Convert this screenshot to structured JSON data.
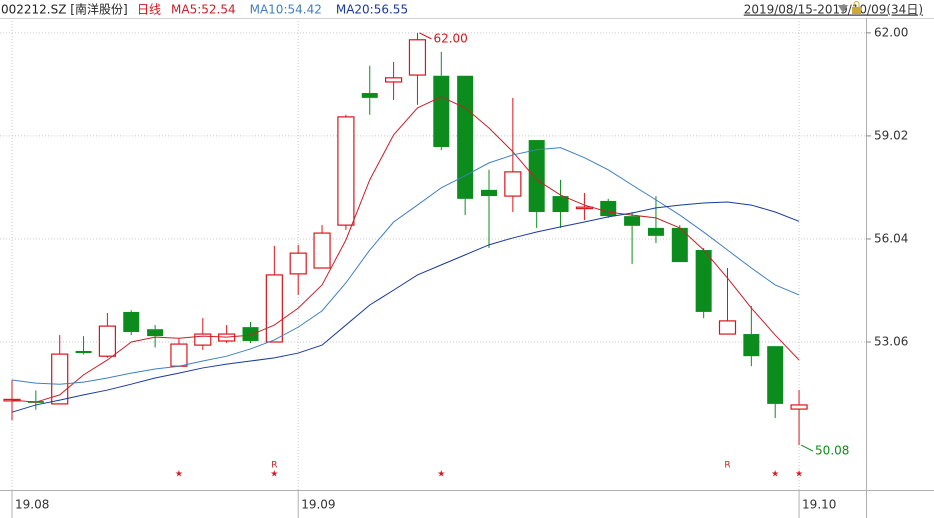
{
  "chart_data": {
    "type": "candlestick",
    "title": "002212.SZ [南洋股份]",
    "period": "日线",
    "date_range": "2019/08/15-2019/10/09(34日)",
    "categories": [
      "19.08",
      null,
      null,
      null,
      null,
      null,
      null,
      null,
      null,
      null,
      null,
      null,
      "19.09",
      null,
      null,
      null,
      null,
      null,
      null,
      null,
      null,
      null,
      null,
      null,
      null,
      null,
      null,
      null,
      null,
      null,
      null,
      null,
      null,
      "19.10"
    ],
    "open": [
      51.36,
      51.35,
      51.27,
      52.8,
      52.65,
      53.93,
      53.43,
      52.36,
      52.97,
      53.09,
      53.49,
      53.06,
      55.03,
      55.2,
      56.44,
      60.26,
      60.58,
      60.78,
      60.76,
      60.76,
      57.46,
      57.28,
      58.9,
      57.28,
      56.92,
      57.14,
      56.7,
      56.36,
      56.36,
      55.72,
      53.29,
      53.29,
      52.94,
      51.12
    ],
    "high": [
      51.96,
      51.66,
      53.26,
      53.23,
      53.9,
      53.98,
      53.55,
      53.17,
      53.75,
      53.55,
      53.64,
      55.84,
      55.87,
      56.44,
      59.63,
      61.05,
      61.16,
      62.0,
      61.45,
      60.76,
      58.04,
      60.12,
      58.9,
      57.75,
      57.37,
      57.2,
      56.82,
      57.28,
      56.44,
      55.78,
      55.2,
      54.1,
      52.94,
      51.67
    ],
    "low": [
      50.8,
      51.1,
      51.27,
      52.7,
      52.6,
      53.26,
      52.9,
      52.36,
      52.83,
      53.03,
      53.03,
      53.06,
      54.42,
      55.2,
      56.3,
      59.63,
      60.06,
      59.92,
      58.61,
      56.73,
      55.78,
      56.82,
      56.36,
      56.36,
      56.59,
      56.65,
      55.32,
      55.92,
      55.37,
      53.75,
      53.29,
      52.36,
      50.86,
      50.08
    ],
    "close": [
      51.4,
      51.3,
      52.71,
      52.74,
      53.52,
      53.35,
      53.23,
      53.0,
      53.29,
      53.29,
      53.09,
      55.0,
      55.63,
      56.21,
      59.57,
      60.12,
      60.7,
      61.8,
      58.7,
      57.2,
      57.28,
      57.98,
      56.82,
      56.82,
      56.96,
      56.7,
      56.42,
      56.13,
      55.37,
      53.93,
      53.67,
      52.65,
      51.27,
      51.24
    ],
    "up_color": "#d9141c",
    "down_color": "#0c8c1c",
    "series": [
      {
        "name": "MA5:52.54",
        "color": "#c8202a",
        "values": [
          51.38,
          51.32,
          51.53,
          52.11,
          52.54,
          53.06,
          53.2,
          53.17,
          53.23,
          53.2,
          53.26,
          53.55,
          54.04,
          54.71,
          56.01,
          57.75,
          59.05,
          59.83,
          60.15,
          59.83,
          59.25,
          58.56,
          57.75,
          57.31,
          57.02,
          56.82,
          56.73,
          56.65,
          56.36,
          55.72,
          54.91,
          54.04,
          53.26,
          52.54
        ]
      },
      {
        "name": "MA10:54.42",
        "color": "#3f7fc0",
        "values": [
          51.96,
          51.87,
          51.84,
          51.9,
          52.02,
          52.16,
          52.28,
          52.36,
          52.51,
          52.65,
          52.86,
          53.12,
          53.49,
          53.96,
          54.77,
          55.72,
          56.53,
          57.02,
          57.52,
          57.87,
          58.24,
          58.47,
          58.62,
          58.68,
          58.39,
          58.04,
          57.6,
          57.17,
          56.73,
          56.24,
          55.72,
          55.2,
          54.71,
          54.42
        ]
      },
      {
        "name": "MA20:56.55",
        "color": "#1a3a9c",
        "values": [
          51.03,
          51.24,
          51.38,
          51.53,
          51.67,
          51.84,
          52.02,
          52.16,
          52.31,
          52.42,
          52.51,
          52.6,
          52.74,
          52.97,
          53.55,
          54.13,
          54.56,
          55.0,
          55.29,
          55.58,
          55.87,
          56.07,
          56.24,
          56.39,
          56.53,
          56.68,
          56.79,
          56.94,
          57.02,
          57.08,
          57.11,
          57.02,
          56.82,
          56.55
        ]
      }
    ],
    "signals_r": [
      null,
      null,
      null,
      null,
      null,
      null,
      null,
      null,
      null,
      null,
      null,
      "R",
      null,
      null,
      null,
      null,
      null,
      null,
      null,
      null,
      null,
      null,
      null,
      null,
      null,
      null,
      null,
      null,
      null,
      null,
      "R",
      null,
      null,
      null
    ],
    "signals_star": [
      null,
      null,
      null,
      null,
      null,
      null,
      null,
      "★",
      null,
      null,
      null,
      "★",
      null,
      null,
      null,
      null,
      null,
      null,
      "★",
      null,
      null,
      null,
      null,
      null,
      null,
      null,
      null,
      null,
      null,
      null,
      null,
      null,
      "★",
      "★"
    ],
    "annotations": [
      {
        "value": 62,
        "label": "62.00"
      },
      {
        "value": 50.08,
        "label": "50.08"
      }
    ],
    "ylim": [
      48.78,
      62.43
    ],
    "yticks": [
      {
        "value": 62,
        "label": "62.00"
      },
      59.02,
      56.04,
      53.06
    ],
    "grid": true
  }
}
